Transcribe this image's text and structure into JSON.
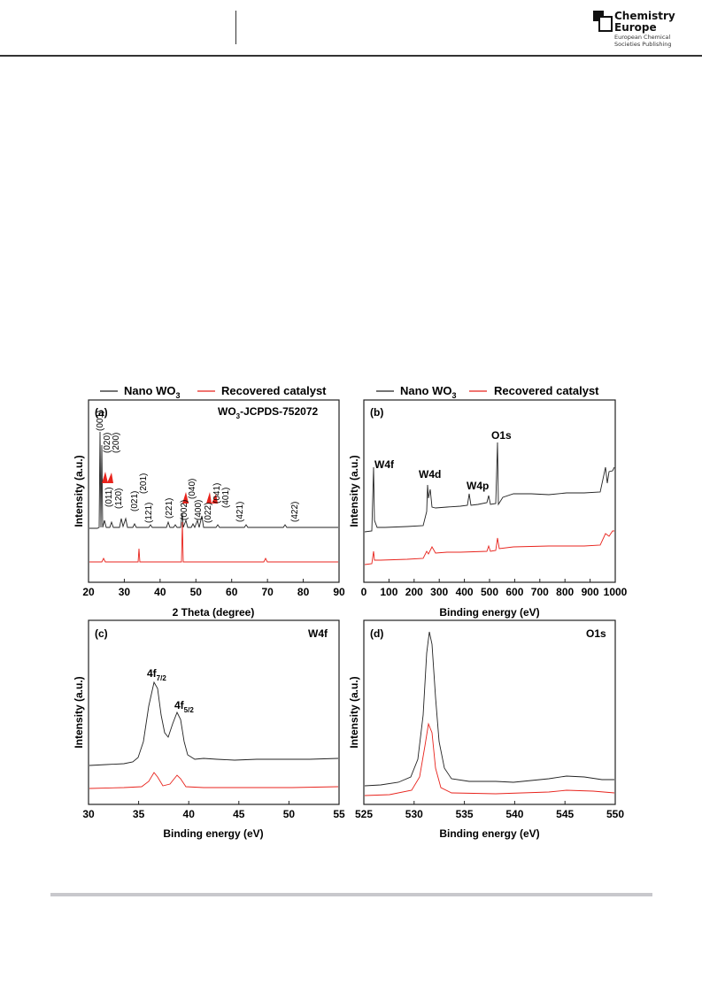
{
  "header": {
    "logo": {
      "name_line1": "Chemistry",
      "name_line2": "Europe",
      "sub_line1": "European Chemical",
      "sub_line2": "Societies Publishing"
    }
  },
  "figure": {
    "legend": {
      "nano": "Nano WO",
      "nano_sub": "3",
      "recovered": "Recovered catalyst"
    },
    "colors": {
      "nano": "#222222",
      "recovered": "#e8231c",
      "arrow": "#e8231c"
    },
    "panel_a": {
      "label": "(a)",
      "ref_text": "WO",
      "ref_sub": "3",
      "ref_rest": "-JCPDS-752072",
      "ylabel": "Intensity (a.u.)",
      "xlabel": "2 Theta (degree)",
      "xticks": [
        "20",
        "30",
        "40",
        "50",
        "60",
        "70",
        "80",
        "90"
      ],
      "peak_labels": [
        "(001)",
        "(020)",
        "(200)",
        "(011)",
        "(120)",
        "(021)",
        "(201)",
        "(121)",
        "(221)",
        "(002)",
        "(040)",
        "(400)",
        "(022)",
        "(041)",
        "(401)",
        "(421)",
        "(422)"
      ]
    },
    "panel_b": {
      "label": "(b)",
      "ylabel": "Intensity (a.u.)",
      "xlabel": "Binding energy (eV)",
      "xticks": [
        "0",
        "100",
        "200",
        "300",
        "400",
        "500",
        "600",
        "700",
        "800",
        "900",
        "1000"
      ],
      "annotations": [
        "W4f",
        "W4d",
        "W4p",
        "O1s"
      ]
    },
    "panel_c": {
      "label": "(c)",
      "tag": "W4f",
      "ylabel": "Intensity (a.u.)",
      "xlabel": "Binding energy (eV)",
      "xticks": [
        "30",
        "35",
        "40",
        "45",
        "50",
        "55"
      ],
      "peak1": "4f",
      "peak1_sub": "7/2",
      "peak2": "4f",
      "peak2_sub": "5/2"
    },
    "panel_d": {
      "label": "(d)",
      "tag": "O1s",
      "ylabel": "Intensity (a.u.)",
      "xlabel": "Binding energy (eV)",
      "xticks": [
        "525",
        "530",
        "535",
        "540",
        "545",
        "550"
      ]
    }
  }
}
